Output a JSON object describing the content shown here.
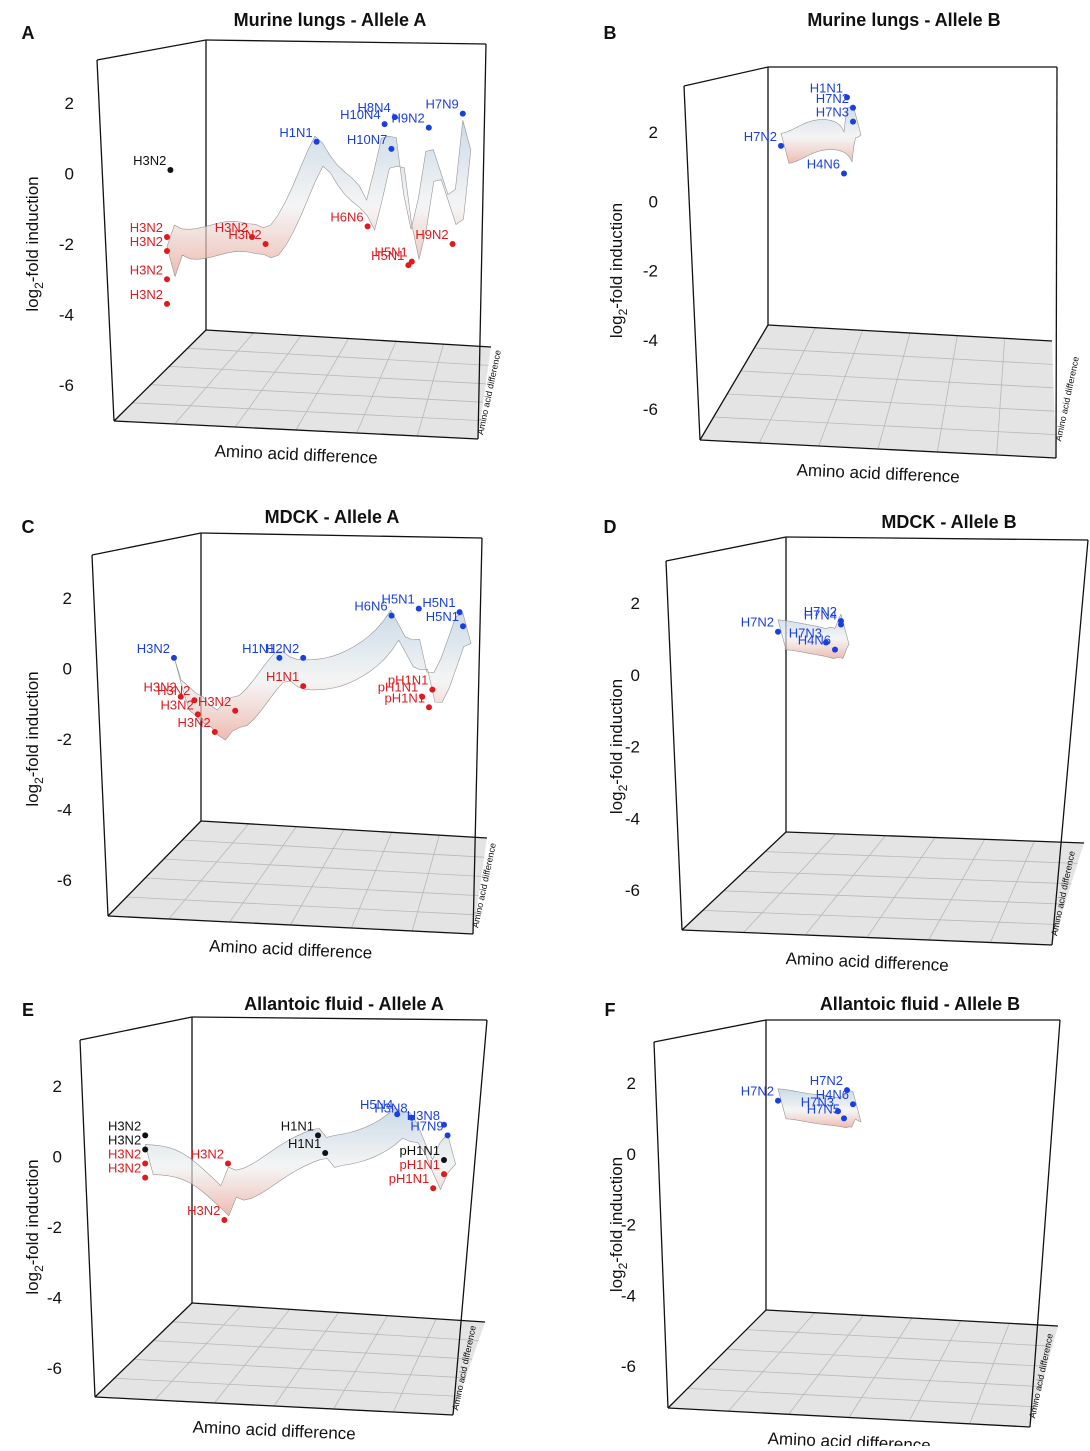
{
  "colors": {
    "upregulated": "#1a3fe0",
    "downregulated": "#e0191f",
    "neutral": "#111111",
    "floor": "#e4e4e4",
    "grid": "#b8b8b8",
    "surface_cool": "#b8cfe0",
    "surface_warm": "#e9a597"
  },
  "chart_data": [
    {
      "panel": "A",
      "type": "surface3d",
      "title": "Murine lungs - Allele A",
      "xlabel": "Amino acid difference",
      "ylabel": "log2-fold induction",
      "zlabel": "Amino acid difference",
      "ylim": [
        -7,
        3
      ],
      "yticks": [
        2,
        0,
        -2,
        -4,
        -6
      ],
      "points": [
        {
          "label": "H3N2",
          "x": 0.06,
          "y": 0.1,
          "group": "neutral"
        },
        {
          "label": "H3N2",
          "x": 0.05,
          "y": -1.8,
          "group": "down"
        },
        {
          "label": "H3N2",
          "x": 0.05,
          "y": -2.2,
          "group": "down"
        },
        {
          "label": "H3N2",
          "x": 0.05,
          "y": -3.0,
          "group": "down"
        },
        {
          "label": "H3N2",
          "x": 0.05,
          "y": -3.7,
          "group": "down"
        },
        {
          "label": "H3N2",
          "x": 0.3,
          "y": -1.8,
          "group": "down"
        },
        {
          "label": "H3N2",
          "x": 0.34,
          "y": -2.0,
          "group": "down"
        },
        {
          "label": "H1N1",
          "x": 0.49,
          "y": 0.9,
          "group": "up"
        },
        {
          "label": "H6N6",
          "x": 0.64,
          "y": -1.5,
          "group": "down"
        },
        {
          "label": "H10N4",
          "x": 0.69,
          "y": 1.4,
          "group": "up"
        },
        {
          "label": "H8N4",
          "x": 0.72,
          "y": 1.6,
          "group": "up"
        },
        {
          "label": "H10N7",
          "x": 0.71,
          "y": 0.7,
          "group": "up"
        },
        {
          "label": "H9N2",
          "x": 0.82,
          "y": 1.3,
          "group": "up"
        },
        {
          "label": "H7N9",
          "x": 0.92,
          "y": 1.7,
          "group": "up"
        },
        {
          "label": "H5N1",
          "x": 0.76,
          "y": -2.6,
          "group": "down"
        },
        {
          "label": "H5N1",
          "x": 0.77,
          "y": -2.5,
          "group": "down"
        },
        {
          "label": "H9N2",
          "x": 0.89,
          "y": -2.0,
          "group": "down"
        }
      ]
    },
    {
      "panel": "B",
      "type": "surface3d",
      "title": "Murine lungs - Allele B",
      "xlabel": "Amino acid difference",
      "ylabel": "log2-fold induction",
      "zlabel": "Amino acid difference",
      "ylim": [
        -7,
        3
      ],
      "yticks": [
        2,
        0,
        -2,
        -4,
        -6
      ],
      "points": [
        {
          "label": "H1N1",
          "x": 0.49,
          "y": 3.0,
          "group": "up"
        },
        {
          "label": "H7N2",
          "x": 0.51,
          "y": 2.7,
          "group": "up"
        },
        {
          "label": "H7N3",
          "x": 0.51,
          "y": 2.3,
          "group": "up"
        },
        {
          "label": "H7N2",
          "x": 0.27,
          "y": 1.6,
          "group": "up"
        },
        {
          "label": "H4N6",
          "x": 0.48,
          "y": 0.8,
          "group": "up"
        }
      ]
    },
    {
      "panel": "C",
      "type": "surface3d",
      "title": "MDCK - Allele A",
      "xlabel": "Amino acid difference",
      "ylabel": "log2-fold induction",
      "zlabel": "Amino acid difference",
      "ylim": [
        -7,
        3
      ],
      "yticks": [
        2,
        0,
        -2,
        -4,
        -6
      ],
      "points": [
        {
          "label": "H3N2",
          "x": 0.1,
          "y": 0.3,
          "group": "up"
        },
        {
          "label": "H3N2",
          "x": 0.12,
          "y": -0.8,
          "group": "down"
        },
        {
          "label": "H3N2",
          "x": 0.16,
          "y": -0.9,
          "group": "down"
        },
        {
          "label": "H3N2",
          "x": 0.17,
          "y": -1.3,
          "group": "down"
        },
        {
          "label": "H3N2",
          "x": 0.22,
          "y": -1.8,
          "group": "down"
        },
        {
          "label": "H3N2",
          "x": 0.28,
          "y": -1.2,
          "group": "down"
        },
        {
          "label": "H1N1",
          "x": 0.41,
          "y": 0.3,
          "group": "up"
        },
        {
          "label": "H2N2",
          "x": 0.48,
          "y": 0.3,
          "group": "up"
        },
        {
          "label": "H1N1",
          "x": 0.48,
          "y": -0.5,
          "group": "down"
        },
        {
          "label": "H6N6",
          "x": 0.74,
          "y": 1.5,
          "group": "up"
        },
        {
          "label": "H5N1",
          "x": 0.82,
          "y": 1.7,
          "group": "up"
        },
        {
          "label": "H5N1",
          "x": 0.94,
          "y": 1.6,
          "group": "up"
        },
        {
          "label": "H5N1",
          "x": 0.95,
          "y": 1.2,
          "group": "up"
        },
        {
          "label": "pH1N1",
          "x": 0.86,
          "y": -0.6,
          "group": "down"
        },
        {
          "label": "pH1N1",
          "x": 0.83,
          "y": -0.8,
          "group": "down"
        },
        {
          "label": "pH1N1",
          "x": 0.85,
          "y": -1.1,
          "group": "down"
        }
      ]
    },
    {
      "panel": "D",
      "type": "surface3d",
      "title": "MDCK - Allele B",
      "xlabel": "Amino acid difference",
      "ylabel": "log2-fold induction",
      "zlabel": "Amino acid difference",
      "ylim": [
        -7,
        3
      ],
      "yticks": [
        2,
        0,
        -2,
        -4,
        -6
      ],
      "points": [
        {
          "label": "H7N2",
          "x": 0.26,
          "y": 1.2,
          "group": "up"
        },
        {
          "label": "H7N2",
          "x": 0.47,
          "y": 1.5,
          "group": "up"
        },
        {
          "label": "H7N4",
          "x": 0.47,
          "y": 1.4,
          "group": "up"
        },
        {
          "label": "H7N3",
          "x": 0.42,
          "y": 0.9,
          "group": "up"
        },
        {
          "label": "H4N6",
          "x": 0.45,
          "y": 0.7,
          "group": "up"
        }
      ]
    },
    {
      "panel": "E",
      "type": "surface3d",
      "title": "Allantoic fluid - Allele A",
      "xlabel": "Amino acid difference",
      "ylabel": "log2-fold induction",
      "zlabel": "Amino acid difference",
      "ylim": [
        -7,
        3
      ],
      "yticks": [
        2,
        0,
        -2,
        -4,
        -6
      ],
      "points": [
        {
          "label": "H3N2",
          "x": 0.07,
          "y": 0.6,
          "group": "neutral"
        },
        {
          "label": "H3N2",
          "x": 0.07,
          "y": 0.2,
          "group": "neutral"
        },
        {
          "label": "H3N2",
          "x": 0.07,
          "y": -0.2,
          "group": "down"
        },
        {
          "label": "H3N2",
          "x": 0.07,
          "y": -0.6,
          "group": "down"
        },
        {
          "label": "H3N2",
          "x": 0.3,
          "y": -0.2,
          "group": "down"
        },
        {
          "label": "H3N2",
          "x": 0.29,
          "y": -1.8,
          "group": "down"
        },
        {
          "label": "H1N1",
          "x": 0.55,
          "y": 0.6,
          "group": "neutral"
        },
        {
          "label": "H1N1",
          "x": 0.57,
          "y": 0.1,
          "group": "neutral"
        },
        {
          "label": "H5N4",
          "x": 0.77,
          "y": 1.2,
          "group": "up"
        },
        {
          "label": "H3N8",
          "x": 0.81,
          "y": 1.1,
          "group": "up"
        },
        {
          "label": "H3N8",
          "x": 0.9,
          "y": 0.9,
          "group": "up"
        },
        {
          "label": "H7N9",
          "x": 0.91,
          "y": 0.6,
          "group": "up"
        },
        {
          "label": "pH1N1",
          "x": 0.9,
          "y": -0.1,
          "group": "neutral"
        },
        {
          "label": "pH1N1",
          "x": 0.9,
          "y": -0.5,
          "group": "down"
        },
        {
          "label": "pH1N1",
          "x": 0.87,
          "y": -0.9,
          "group": "down"
        }
      ]
    },
    {
      "panel": "F",
      "type": "surface3d",
      "title": "Allantoic fluid - Allele B",
      "xlabel": "Amino acid difference",
      "ylabel": "log2-fold induction",
      "zlabel": "Amino acid difference",
      "ylim": [
        -7,
        3
      ],
      "yticks": [
        2,
        0,
        -2,
        -4,
        -6
      ],
      "points": [
        {
          "label": "H7N2",
          "x": 0.26,
          "y": 1.5,
          "group": "up"
        },
        {
          "label": "H7N2",
          "x": 0.49,
          "y": 1.8,
          "group": "up"
        },
        {
          "label": "H4N6",
          "x": 0.51,
          "y": 1.4,
          "group": "up"
        },
        {
          "label": "H7N3",
          "x": 0.46,
          "y": 1.2,
          "group": "up"
        },
        {
          "label": "H7N5",
          "x": 0.48,
          "y": 1.0,
          "group": "up"
        }
      ]
    }
  ]
}
